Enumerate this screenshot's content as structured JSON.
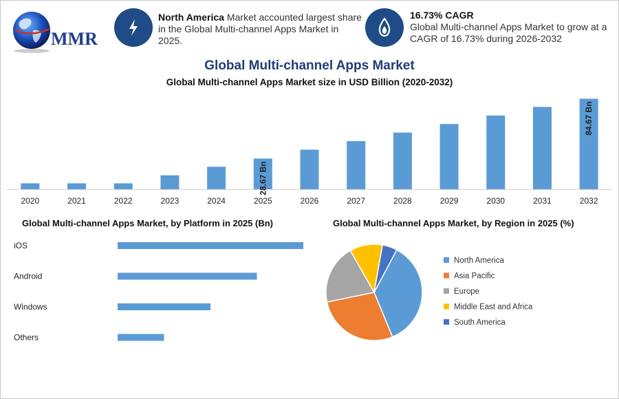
{
  "header": {
    "logo_text": "MMR",
    "info_left": {
      "icon": "lightning-icon",
      "bold": "North America",
      "text": " Market accounted largest share in the Global Multi-channel Apps Market in 2025."
    },
    "info_right": {
      "icon": "droplet-flame-icon",
      "bold": "16.73% CAGR",
      "text": "Global Multi-channel Apps Market to grow at a CAGR of 16.73% during 2026-2032"
    }
  },
  "title": "Global Multi-channel Apps Market",
  "colors": {
    "bar": "#5b9bd5",
    "icon_bg": "#1f4c86",
    "title": "#1f3e78"
  },
  "chart_data": [
    {
      "type": "bar",
      "title": "Global Multi-channel Apps Market size in USD Billion (2020-2032)",
      "categories": [
        "2020",
        "2021",
        "2022",
        "2023",
        "2024",
        "2025",
        "2026",
        "2027",
        "2028",
        "2029",
        "2030",
        "2031",
        "2032"
      ],
      "values": [
        5.5,
        5.5,
        5.5,
        13,
        21,
        28.67,
        37,
        45,
        53,
        61,
        69,
        77,
        84.67
      ],
      "data_labels": {
        "5": "28.67 Bn",
        "12": "84.67 Bn"
      },
      "ylim": [
        0,
        85
      ],
      "grid": false
    },
    {
      "type": "bar",
      "orientation": "horizontal",
      "title": "Global Multi-channel Apps Market, by Platform in 2025 (Bn)",
      "categories": [
        "iOS",
        "Android",
        "Windows",
        "Others"
      ],
      "values": [
        12,
        9,
        6,
        3
      ],
      "xlim": [
        0,
        12
      ],
      "grid": false
    },
    {
      "type": "pie",
      "title": "Global Multi-channel Apps Market, by Region in 2025 (%)",
      "categories": [
        "North America",
        "Asia Pacific",
        "Europe",
        "Middle East and Africa",
        "South America"
      ],
      "values": [
        36,
        28,
        20,
        11,
        5
      ],
      "colors": [
        "#5b9bd5",
        "#ed7d31",
        "#a5a5a5",
        "#ffc000",
        "#4472c4"
      ],
      "legend": "right"
    }
  ]
}
